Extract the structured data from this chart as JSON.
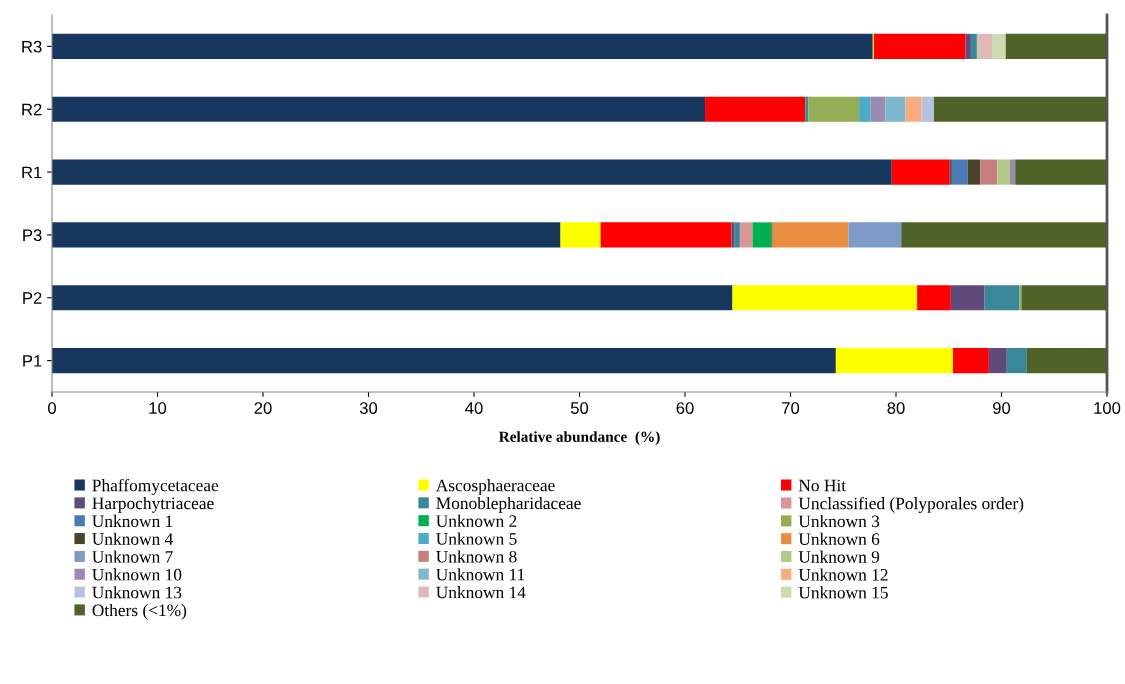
{
  "chart_data": {
    "type": "bar",
    "orientation": "horizontal",
    "stacked": true,
    "xlabel": "Relative abundance  (%)",
    "categories": [
      "R3",
      "R2",
      "R1",
      "P3",
      "P2",
      "P1"
    ],
    "xlim": [
      0,
      100
    ],
    "xticks": [
      0,
      10,
      20,
      30,
      40,
      50,
      60,
      70,
      80,
      90,
      100
    ],
    "grid": false,
    "legend": "bottom",
    "series": [
      {
        "name": "Phaffomycetaceae",
        "color": "#17375e",
        "values": [
          77.8,
          61.9,
          79.6,
          48.2,
          64.5,
          74.3
        ]
      },
      {
        "name": "Ascosphaeraceae",
        "color": "#ffff00",
        "values": [
          0.1,
          null,
          null,
          3.8,
          17.5,
          11.1
        ]
      },
      {
        "name": "No Hit",
        "color": "#ff0000",
        "values": [
          8.7,
          9.5,
          5.5,
          12.4,
          3.2,
          3.4
        ]
      },
      {
        "name": "Harpochytriaceae",
        "color": "#604a7b",
        "values": [
          0.5,
          null,
          0.2,
          0.3,
          3.2,
          1.7
        ]
      },
      {
        "name": "Monoblepharidaceae",
        "color": "#3a8799",
        "values": [
          0.5,
          0.3,
          0.2,
          0.5,
          3.3,
          1.9
        ]
      },
      {
        "name": "Unclassified (Polyporales order)",
        "color": "#d99694",
        "values": [
          null,
          null,
          null,
          1.2,
          null,
          null
        ]
      },
      {
        "name": "Unknown 1",
        "color": "#4a7ab5",
        "values": [
          null,
          null,
          1.3,
          null,
          null,
          null
        ]
      },
      {
        "name": "Unknown 2",
        "color": "#00b050",
        "values": [
          0.1,
          null,
          null,
          1.8,
          null,
          null
        ]
      },
      {
        "name": "Unknown 3",
        "color": "#93ae55",
        "values": [
          null,
          4.8,
          null,
          null,
          0.2,
          null
        ]
      },
      {
        "name": "Unknown 4",
        "color": "#494429",
        "values": [
          null,
          null,
          1.2,
          0.1,
          null,
          null
        ]
      },
      {
        "name": "Unknown 5",
        "color": "#4bacc6",
        "values": [
          null,
          1.1,
          null,
          null,
          null,
          null
        ]
      },
      {
        "name": "Unknown 6",
        "color": "#e78c40",
        "values": [
          null,
          null,
          null,
          7.2,
          null,
          null
        ]
      },
      {
        "name": "Unknown 7",
        "color": "#7e9bc8",
        "values": [
          null,
          null,
          null,
          5.0,
          null,
          null
        ]
      },
      {
        "name": "Unknown 8",
        "color": "#c87f7f",
        "values": [
          null,
          null,
          1.6,
          null,
          null,
          null
        ]
      },
      {
        "name": "Unknown 9",
        "color": "#afc986",
        "values": [
          null,
          null,
          1.2,
          null,
          null,
          null
        ]
      },
      {
        "name": "Unknown 10",
        "color": "#9b8bb3",
        "values": [
          null,
          1.4,
          0.5,
          null,
          null,
          null
        ]
      },
      {
        "name": "Unknown 11",
        "color": "#7db8cf",
        "values": [
          null,
          1.9,
          null,
          null,
          null,
          null
        ]
      },
      {
        "name": "Unknown 12",
        "color": "#f9ac7d",
        "values": [
          null,
          1.5,
          null,
          null,
          null,
          null
        ]
      },
      {
        "name": "Unknown 13",
        "color": "#b6c3df",
        "values": [
          null,
          1.2,
          null,
          null,
          null,
          null
        ]
      },
      {
        "name": "Unknown 14",
        "color": "#e0b8b8",
        "values": [
          1.4,
          null,
          null,
          null,
          null,
          null
        ]
      },
      {
        "name": "Unknown 15",
        "color": "#cfdab5",
        "values": [
          1.3,
          null,
          null,
          null,
          null,
          null
        ]
      },
      {
        "name": "Others (<1%)",
        "color": "#4f6228",
        "values": [
          9.6,
          16.4,
          8.7,
          19.5,
          8.1,
          7.6
        ]
      }
    ]
  }
}
